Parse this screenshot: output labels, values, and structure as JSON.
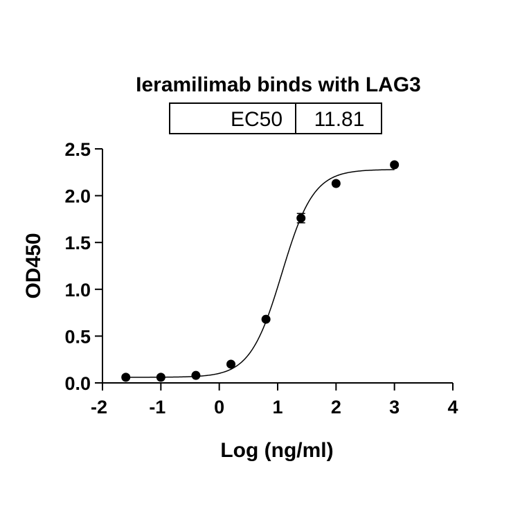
{
  "chart_data": {
    "type": "scatter",
    "title": "Ieramilimab binds with LAG3",
    "xlabel": "Log (ng/ml)",
    "ylabel": "OD450",
    "xlim": [
      -2,
      4
    ],
    "ylim": [
      0.0,
      2.5
    ],
    "xticks": [
      "-2",
      "-1",
      "0",
      "1",
      "2",
      "3",
      "4"
    ],
    "yticks": [
      "0.0",
      "0.5",
      "1.0",
      "1.5",
      "2.0",
      "2.5"
    ],
    "grid": false,
    "legend": "none",
    "ec50_table": {
      "label": "EC50",
      "value": "11.81"
    },
    "points": [
      {
        "x": -1.6,
        "y": 0.06,
        "err": 0.0
      },
      {
        "x": -1.0,
        "y": 0.06,
        "err": 0.0
      },
      {
        "x": -0.4,
        "y": 0.08,
        "err": 0.0
      },
      {
        "x": 0.2,
        "y": 0.2,
        "err": 0.0
      },
      {
        "x": 0.8,
        "y": 0.68,
        "err": 0.0
      },
      {
        "x": 1.4,
        "y": 1.76,
        "err": 0.05
      },
      {
        "x": 2.0,
        "y": 2.13,
        "err": 0.0
      },
      {
        "x": 3.0,
        "y": 2.33,
        "err": 0.0
      }
    ],
    "fit": {
      "model": "4PL",
      "bottom": 0.06,
      "top": 2.28,
      "logEC50": 1.072,
      "hill": 1.6
    },
    "colors": {
      "marks": "#000000"
    }
  }
}
